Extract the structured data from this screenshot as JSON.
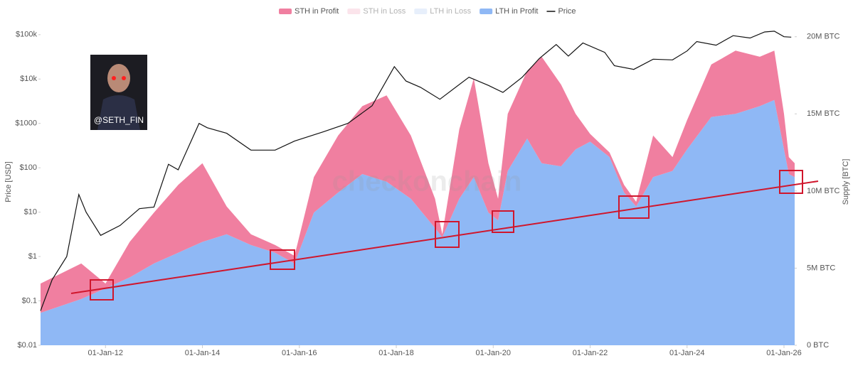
{
  "chart_data": {
    "type": "area",
    "stacked": true,
    "ylog": true,
    "watermark": "checkonchain",
    "badge": "@SETH_FIN",
    "ylabel": "Price [USD]",
    "y2label": "Supply [BTC]",
    "xlim": [
      2010.66,
      2026.22
    ],
    "xticks": [
      {
        "value": 2012,
        "label": "01-Jan-12"
      },
      {
        "value": 2014,
        "label": "01-Jan-14"
      },
      {
        "value": 2016,
        "label": "01-Jan-16"
      },
      {
        "value": 2018,
        "label": "01-Jan-18"
      },
      {
        "value": 2020,
        "label": "01-Jan-20"
      },
      {
        "value": 2022,
        "label": "01-Jan-22"
      },
      {
        "value": 2024,
        "label": "01-Jan-24"
      },
      {
        "value": 2026,
        "label": "01-Jan-26"
      }
    ],
    "ylim": [
      0.01,
      200000
    ],
    "yticks": [
      {
        "value": 0.01,
        "label": "$0.01"
      },
      {
        "value": 0.1,
        "label": "$0.1"
      },
      {
        "value": 1,
        "label": "$1"
      },
      {
        "value": 10,
        "label": "$10"
      },
      {
        "value": 100,
        "label": "$100"
      },
      {
        "value": 1000,
        "label": "$1000"
      },
      {
        "value": 10000,
        "label": "$10k"
      },
      {
        "value": 100000,
        "label": "$100k"
      }
    ],
    "y2lim": [
      0,
      21000000
    ],
    "y2ticks": [
      {
        "value": 0,
        "label": "0 BTC"
      },
      {
        "value": 5000000,
        "label": "5M BTC"
      },
      {
        "value": 10000000,
        "label": "10M BTC"
      },
      {
        "value": 15000000,
        "label": "15M BTC"
      },
      {
        "value": 20000000,
        "label": "20M BTC"
      }
    ],
    "series": [
      {
        "name": "STH in Profit",
        "color": "#f07fa0",
        "axis": "y2",
        "visible": true,
        "x": [
          2010.66,
          2011.5,
          2012.0,
          2012.5,
          2013.0,
          2013.5,
          2014.0,
          2014.5,
          2015.0,
          2015.5,
          2015.9,
          2016.3,
          2016.8,
          2017.3,
          2017.8,
          2018.3,
          2018.8,
          2018.95,
          2019.3,
          2019.6,
          2019.9,
          2020.1,
          2020.3,
          2020.7,
          2021.0,
          2021.4,
          2021.7,
          2022.0,
          2022.4,
          2022.7,
          2022.95,
          2023.3,
          2023.7,
          2024.0,
          2024.5,
          2025.0,
          2025.5,
          2025.8,
          2026.0,
          2026.1,
          2026.22
        ],
        "values": [
          1900000,
          2300000,
          300000,
          2300000,
          3300000,
          4400000,
          5100000,
          1800000,
          700000,
          500000,
          500000,
          2300000,
          3700000,
          4400000,
          5600000,
          4100000,
          1900000,
          200000,
          4500000,
          6400000,
          3200000,
          1400000,
          3700000,
          4400000,
          6900000,
          5300000,
          2300000,
          500000,
          300000,
          500000,
          300000,
          2700000,
          900000,
          1900000,
          3400000,
          4100000,
          3200000,
          3200000,
          2300000,
          1100000,
          900000
        ]
      },
      {
        "name": "STH in Loss",
        "color": "#f7c4d2",
        "axis": "y2",
        "visible": false
      },
      {
        "name": "LTH in Loss",
        "color": "#c9dbf7",
        "axis": "y2",
        "visible": false
      },
      {
        "name": "LTH in Profit",
        "color": "#8fb8f5",
        "axis": "y2",
        "visible": true,
        "x": [
          2010.66,
          2011.5,
          2012.0,
          2012.5,
          2013.0,
          2013.5,
          2014.0,
          2014.5,
          2015.0,
          2015.5,
          2015.9,
          2016.3,
          2016.8,
          2017.3,
          2017.8,
          2018.3,
          2018.8,
          2018.95,
          2019.3,
          2019.6,
          2019.9,
          2020.1,
          2020.3,
          2020.7,
          2021.0,
          2021.4,
          2021.7,
          2022.0,
          2022.4,
          2022.7,
          2022.95,
          2023.3,
          2023.7,
          2024.0,
          2024.5,
          2025.0,
          2025.5,
          2025.8,
          2026.0,
          2026.1,
          2026.22
        ],
        "values": [
          2100000,
          3000000,
          3700000,
          4400000,
          5300000,
          6000000,
          6700000,
          7200000,
          6500000,
          6000000,
          5300000,
          8600000,
          9900000,
          11100000,
          10600000,
          9500000,
          7600000,
          7000000,
          9500000,
          10900000,
          8600000,
          8100000,
          11300000,
          13400000,
          11800000,
          11600000,
          12700000,
          13200000,
          12200000,
          9900000,
          9000000,
          10900000,
          11300000,
          12700000,
          14800000,
          15000000,
          15500000,
          15900000,
          12700000,
          11100000,
          10900000
        ]
      },
      {
        "name": "Price",
        "color": "#111111",
        "type": "line",
        "axis": "y",
        "visible": true,
        "x": [
          2010.66,
          2010.9,
          2011.2,
          2011.45,
          2011.6,
          2011.9,
          2012.3,
          2012.7,
          2013.0,
          2013.3,
          2013.5,
          2013.93,
          2014.1,
          2014.5,
          2015.0,
          2015.5,
          2015.9,
          2016.5,
          2017.0,
          2017.5,
          2017.96,
          2018.2,
          2018.5,
          2018.9,
          2019.5,
          2019.9,
          2020.2,
          2020.6,
          2020.95,
          2021.3,
          2021.55,
          2021.85,
          2022.3,
          2022.5,
          2022.9,
          2023.3,
          2023.7,
          2024.0,
          2024.2,
          2024.6,
          2024.95,
          2025.3,
          2025.6,
          2025.8,
          2026.0,
          2026.15
        ],
        "values": [
          0.06,
          0.3,
          1,
          25,
          10,
          3,
          5,
          12,
          13,
          120,
          90,
          1000,
          800,
          600,
          250,
          250,
          400,
          650,
          1000,
          2500,
          19000,
          9000,
          6500,
          3500,
          11000,
          7200,
          5000,
          11000,
          29000,
          60000,
          33000,
          65000,
          40000,
          20000,
          16500,
          28000,
          27000,
          43000,
          70000,
          58000,
          95000,
          84000,
          115000,
          120000,
          90000,
          88000
        ]
      }
    ]
  }
}
